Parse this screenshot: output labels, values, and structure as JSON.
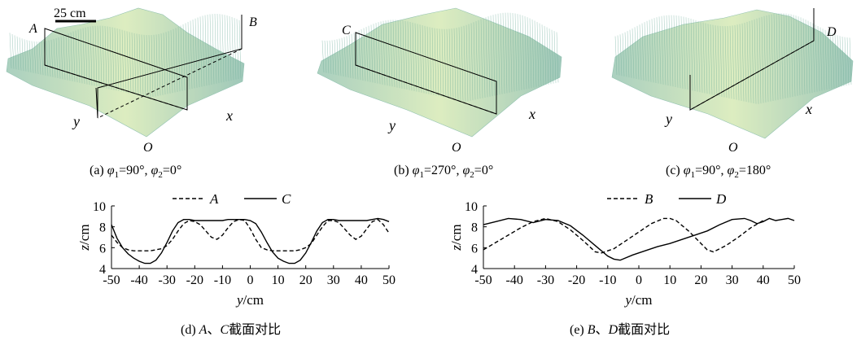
{
  "panels": {
    "a": {
      "prefix": "(a) ",
      "phi1": "φ",
      "sub1": "1",
      "eq1": "=90°, ",
      "phi2": "φ",
      "sub2": "2",
      "eq2": "=0°"
    },
    "b": {
      "prefix": "(b) ",
      "phi1": "φ",
      "sub1": "1",
      "eq1": "=270°, ",
      "phi2": "φ",
      "sub2": "2",
      "eq2": "=0°"
    },
    "c": {
      "prefix": "(c) ",
      "phi1": "φ",
      "sub1": "1",
      "eq1": "=90°, ",
      "phi2": "φ",
      "sub2": "2",
      "eq2": "=180°"
    },
    "d": {
      "prefix": "(d) ",
      "l1": "A",
      "sep": "、",
      "l2": "C",
      "suffix": "截面对比"
    },
    "e": {
      "prefix": "(e) ",
      "l1": "B",
      "sep": "、",
      "l2": "D",
      "suffix": "截面对比"
    }
  },
  "surface_labels": {
    "scale": "25 cm",
    "A": "A",
    "B": "B",
    "C": "C",
    "D": "D",
    "x": "x",
    "y": "y",
    "O": "O"
  },
  "colors": {
    "mesh": "#7fb8a4",
    "mesh_light": "#c9e3b8",
    "mesh_peak": "#e6ef9c",
    "line": "#000000"
  },
  "chart_data": [
    {
      "type": "line",
      "xlabel_var": "y",
      "xlabel_unit": "/cm",
      "ylabel_var": "z",
      "ylabel_unit": "/cm",
      "xlim": [
        -50,
        50
      ],
      "ylim": [
        4,
        10
      ],
      "xticks": [
        -50,
        -40,
        -30,
        -20,
        -10,
        0,
        10,
        20,
        30,
        40,
        50
      ],
      "yticks": [
        4,
        6,
        8,
        10
      ],
      "legend": "top",
      "series": [
        {
          "name": "A",
          "dash": true,
          "x": [
            -50,
            -48,
            -46,
            -44,
            -42,
            -40,
            -38,
            -36,
            -34,
            -32,
            -30,
            -28,
            -26,
            -24,
            -22,
            -20,
            -18,
            -16,
            -14,
            -12,
            -10,
            -8,
            -6,
            -4,
            -2,
            0,
            2,
            4,
            6,
            8,
            10,
            12,
            14,
            16,
            18,
            20,
            22,
            24,
            26,
            28,
            30,
            32,
            34,
            36,
            38,
            40,
            42,
            44,
            46,
            48,
            50
          ],
          "y": [
            7.2,
            6.5,
            6.0,
            5.8,
            5.7,
            5.7,
            5.7,
            5.7,
            5.8,
            5.9,
            6.2,
            6.8,
            7.6,
            8.3,
            8.6,
            8.5,
            8.2,
            7.6,
            7.0,
            6.8,
            7.2,
            7.9,
            8.5,
            8.7,
            8.6,
            7.8,
            6.8,
            6.0,
            5.8,
            5.7,
            5.7,
            5.7,
            5.7,
            5.7,
            5.8,
            6.0,
            6.4,
            7.2,
            8.0,
            8.6,
            8.6,
            8.4,
            7.8,
            7.2,
            6.8,
            7.1,
            7.8,
            8.5,
            8.7,
            8.2,
            7.4
          ]
        },
        {
          "name": "C",
          "dash": false,
          "x": [
            -50,
            -48,
            -46,
            -44,
            -42,
            -40,
            -38,
            -36,
            -34,
            -32,
            -30,
            -28,
            -26,
            -24,
            -22,
            -20,
            -18,
            -16,
            -14,
            -12,
            -10,
            -8,
            -6,
            -4,
            -2,
            0,
            2,
            4,
            6,
            8,
            10,
            12,
            14,
            16,
            18,
            20,
            22,
            24,
            26,
            28,
            30,
            32,
            34,
            36,
            38,
            40,
            42,
            44,
            46,
            48,
            50
          ],
          "y": [
            8.2,
            6.9,
            6.0,
            5.4,
            5.0,
            4.7,
            4.5,
            4.5,
            4.8,
            5.5,
            6.5,
            7.6,
            8.4,
            8.7,
            8.7,
            8.6,
            8.6,
            8.6,
            8.6,
            8.6,
            8.6,
            8.7,
            8.7,
            8.7,
            8.7,
            8.6,
            8.3,
            7.5,
            6.5,
            5.6,
            5.0,
            4.7,
            4.5,
            4.5,
            4.8,
            5.5,
            6.5,
            7.6,
            8.4,
            8.7,
            8.7,
            8.6,
            8.6,
            8.6,
            8.6,
            8.6,
            8.6,
            8.7,
            8.8,
            8.7,
            8.5
          ]
        }
      ]
    },
    {
      "type": "line",
      "xlabel_var": "y",
      "xlabel_unit": "/cm",
      "ylabel_var": "z",
      "ylabel_unit": "/cm",
      "xlim": [
        -50,
        50
      ],
      "ylim": [
        4,
        10
      ],
      "xticks": [
        -50,
        -40,
        -30,
        -20,
        -10,
        0,
        10,
        20,
        30,
        40,
        50
      ],
      "yticks": [
        4,
        6,
        8,
        10
      ],
      "legend": "top",
      "series": [
        {
          "name": "B",
          "dash": true,
          "x": [
            -50,
            -46,
            -42,
            -38,
            -34,
            -30,
            -26,
            -22,
            -18,
            -14,
            -12,
            -8,
            -4,
            0,
            4,
            8,
            10,
            12,
            16,
            20,
            22,
            24,
            28,
            32,
            36,
            40
          ],
          "y": [
            5.8,
            6.5,
            7.2,
            7.9,
            8.5,
            8.8,
            8.5,
            7.7,
            6.7,
            5.6,
            5.5,
            5.9,
            6.7,
            7.5,
            8.3,
            8.8,
            8.8,
            8.6,
            7.6,
            6.4,
            5.8,
            5.6,
            6.2,
            7.0,
            7.9,
            8.6
          ]
        },
        {
          "name": "D",
          "dash": false,
          "x": [
            -50,
            -46,
            -42,
            -38,
            -34,
            -30,
            -26,
            -22,
            -18,
            -14,
            -10,
            -8,
            -6,
            -2,
            2,
            6,
            10,
            14,
            18,
            22,
            26,
            30,
            34,
            36,
            38,
            40,
            42,
            44,
            46,
            48,
            50
          ],
          "y": [
            8.2,
            8.5,
            8.8,
            8.7,
            8.4,
            8.7,
            8.6,
            8.1,
            7.2,
            6.2,
            5.2,
            4.9,
            4.8,
            5.3,
            5.7,
            6.1,
            6.4,
            6.8,
            7.2,
            7.6,
            8.2,
            8.7,
            8.8,
            8.6,
            8.3,
            8.5,
            8.8,
            8.6,
            8.7,
            8.8,
            8.6
          ]
        }
      ]
    }
  ]
}
